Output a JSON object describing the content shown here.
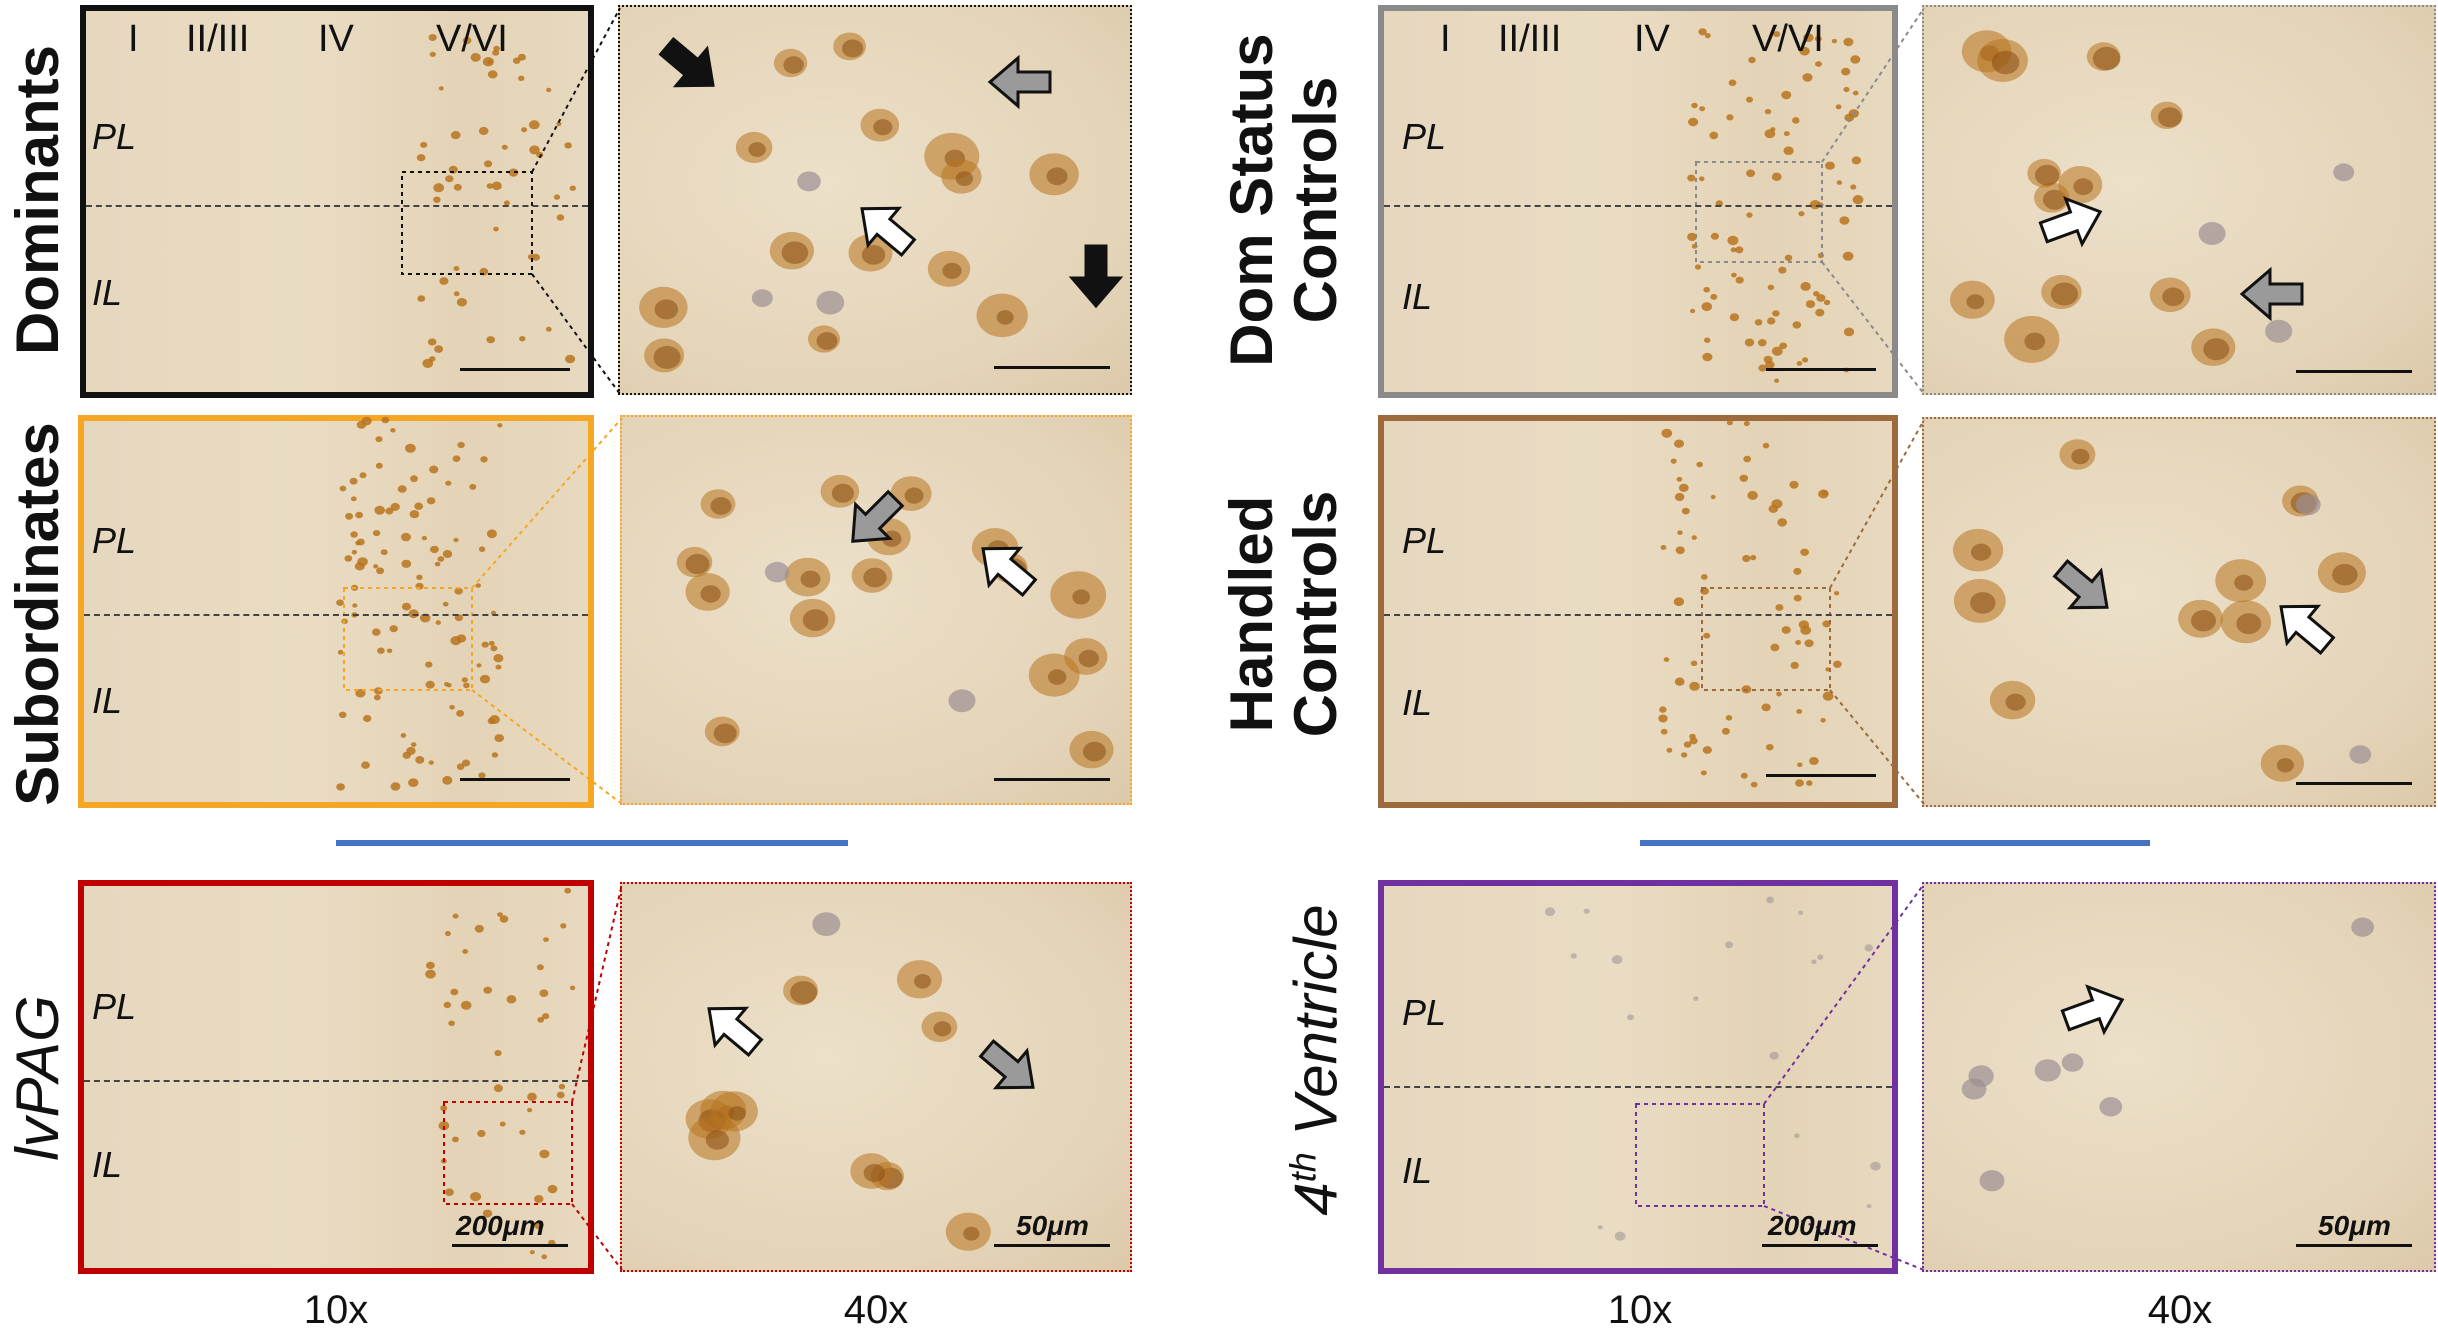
{
  "groups": {
    "dominants": "Dominants",
    "subordinates": "Subordinates",
    "lvpag": "lvPAG",
    "dom_status_controls": [
      "Dom Status",
      "Controls"
    ],
    "handled_controls": [
      "Handled",
      "Controls"
    ],
    "fourth_ventricle": {
      "base": "4",
      "sup": "th",
      "rest": " Ventricle"
    }
  },
  "cortical_layers": [
    "I",
    "II/III",
    "IV",
    "V/VI"
  ],
  "regions": {
    "prelimbic": "PL",
    "infralimbic": "IL"
  },
  "magnifications": [
    "10x",
    "40x"
  ],
  "scale_bars": {
    "low": "200μm",
    "high": "50μm"
  },
  "colors": {
    "dominants": "#111111",
    "subordinates": "#f5a623",
    "lvpag": "#c00000",
    "dom_status_controls": "#8a8a8a",
    "handled_controls": "#9c6a3d",
    "fourth_ventricle": "#7030a0",
    "separator": "#4472c4",
    "stain": "#b8741f",
    "nucleus": "#9c8f93"
  },
  "arrow_types": [
    "black-arrow",
    "gray-arrow",
    "white-arrow"
  ]
}
